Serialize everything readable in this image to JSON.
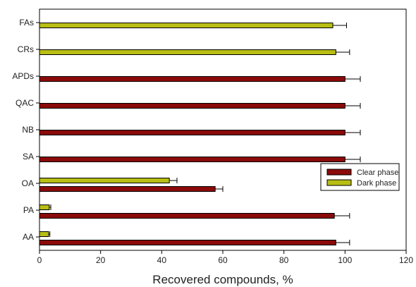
{
  "chart_data": {
    "type": "bar",
    "orientation": "horizontal",
    "categories": [
      "AA",
      "PA",
      "OA",
      "SA",
      "NB",
      "QAC",
      "APDs",
      "CRs",
      "FAs"
    ],
    "series": [
      {
        "name": "Clear phase",
        "color": "#8B0A0A",
        "values": [
          97,
          96.5,
          57.5,
          100,
          100,
          100,
          100,
          null,
          null
        ],
        "errors": [
          4.5,
          5,
          2.5,
          5,
          5,
          5,
          5,
          null,
          null
        ]
      },
      {
        "name": "Dark phase",
        "color": "#B8BE14",
        "values": [
          3,
          3.2,
          42.5,
          null,
          null,
          null,
          null,
          97,
          96
        ],
        "errors": [
          0.4,
          0.5,
          2.5,
          null,
          null,
          null,
          null,
          4.5,
          4.5
        ]
      }
    ],
    "xlabel": "Recovered compounds, %",
    "ylabel": "",
    "xlim": [
      0,
      120
    ],
    "xticks": [
      "0",
      "20",
      "40",
      "60",
      "80",
      "100",
      "120"
    ],
    "grid": false,
    "legend_position": "lower-right"
  }
}
